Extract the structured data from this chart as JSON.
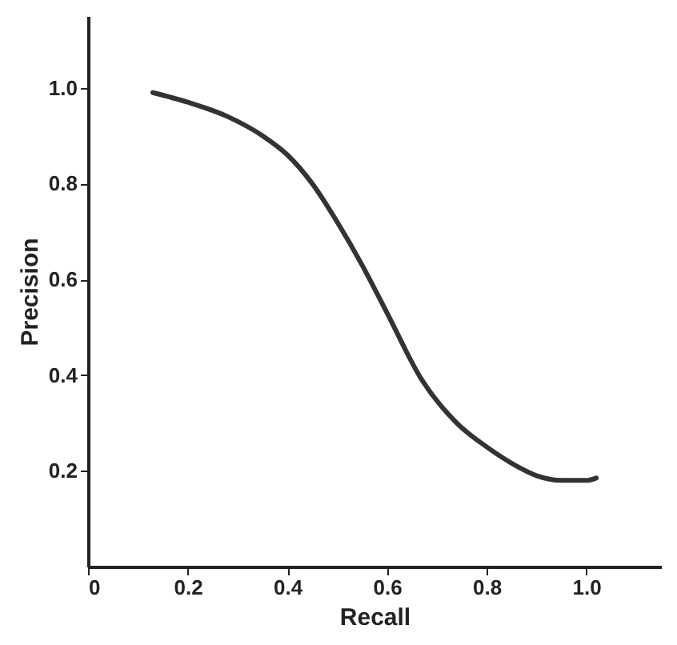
{
  "chart_data": {
    "type": "line",
    "xlabel": "Recall",
    "ylabel": "Precision",
    "x": [
      0.13,
      0.2,
      0.28,
      0.35,
      0.4,
      0.45,
      0.5,
      0.55,
      0.6,
      0.67,
      0.74,
      0.8,
      0.86,
      0.9,
      0.95,
      1.0,
      1.02
    ],
    "series": [
      {
        "color": "#333333",
        "values": [
          0.99,
          0.97,
          0.94,
          0.9,
          0.86,
          0.8,
          0.72,
          0.63,
          0.53,
          0.39,
          0.3,
          0.25,
          0.21,
          0.19,
          0.18,
          0.18,
          0.185
        ]
      }
    ],
    "xlim": [
      0,
      1.15
    ],
    "ylim": [
      0,
      1.15
    ],
    "xticks": [
      0,
      0.2,
      0.4,
      0.6,
      0.8,
      {
        "value": 1,
        "label": "1.0"
      }
    ],
    "yticks": [
      0.2,
      0.4,
      0.6,
      0.8,
      {
        "value": 1,
        "label": "1.0"
      }
    ],
    "grid": false,
    "marker": "none",
    "line_style": "solid"
  }
}
